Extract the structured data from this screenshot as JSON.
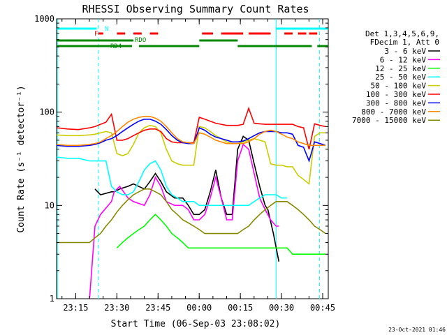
{
  "chart_data": {
    "type": "line",
    "title": "RHESSI Observing Summary Count Rates",
    "xlabel": "Start Time (06-Sep-03 23:08:02)",
    "ylabel": "Count Rate (s⁻¹ detector⁻¹)",
    "yscale": "log",
    "ylim": [
      1,
      1000
    ],
    "xlim_minutes": [
      0,
      99
    ],
    "x_ticks": [
      {
        "label": "23:15",
        "t": 6.97
      },
      {
        "label": "23:30",
        "t": 21.97
      },
      {
        "label": "23:45",
        "t": 36.97
      },
      {
        "label": "00:00",
        "t": 51.97
      },
      {
        "label": "00:15",
        "t": 66.97
      },
      {
        "label": "00:30",
        "t": 81.97
      },
      {
        "label": "00:45",
        "t": 96.97
      }
    ],
    "y_ticks": [
      {
        "label": "1",
        "v": 1
      },
      {
        "label": "10",
        "v": 10
      },
      {
        "label": "100",
        "v": 100
      },
      {
        "label": "1000",
        "v": 1000
      }
    ],
    "legend": {
      "header": [
        "Det 1,3,4,5,6,9,",
        "FDecim 1, Att 0"
      ],
      "position": "right"
    },
    "series": [
      {
        "name": "3 - 6 keV",
        "color": "#000000",
        "t": [
          0,
          8,
          14,
          16,
          20,
          21,
          23,
          26,
          28,
          32,
          34,
          36,
          38,
          40,
          43,
          46,
          48,
          50,
          52,
          54,
          56,
          58,
          60,
          62,
          64,
          66,
          68,
          70,
          72,
          74,
          76,
          77,
          79,
          81,
          82,
          84
        ],
        "values": [
          null,
          null,
          15,
          13,
          14,
          14,
          15,
          16,
          17,
          15,
          18,
          22,
          18,
          14,
          12,
          12,
          10,
          8,
          8,
          9,
          14,
          24,
          12,
          8,
          8,
          40,
          55,
          50,
          28,
          16,
          10,
          9,
          5,
          2.5,
          null,
          null
        ]
      },
      {
        "name": "6 - 12 keV",
        "color": "#ff00ff",
        "t": [
          0,
          11.5,
          12,
          14,
          16,
          20,
          21,
          23,
          26,
          28,
          32,
          34,
          36,
          38,
          40,
          43,
          46,
          48,
          50,
          52,
          54,
          56,
          58,
          60,
          62,
          64,
          66,
          68,
          70,
          72,
          74,
          76,
          78,
          80,
          81,
          82,
          84
        ],
        "values": [
          null,
          null,
          1,
          6,
          8,
          11,
          14,
          16,
          12,
          11,
          10,
          13,
          20,
          16,
          11,
          10,
          10,
          9,
          7,
          7,
          8,
          12,
          20,
          12,
          7,
          7,
          30,
          45,
          40,
          22,
          12,
          9,
          7,
          6,
          6,
          null,
          null
        ]
      },
      {
        "name": "12 - 25 keV",
        "color": "#00ff00",
        "t": [
          0,
          5,
          8,
          10,
          14,
          16,
          18,
          20,
          22,
          24,
          26,
          28,
          30,
          32,
          34,
          36,
          38,
          40,
          42,
          44,
          46,
          48,
          50,
          52,
          54,
          56,
          58,
          60,
          62,
          64,
          66,
          68,
          70,
          72,
          74,
          76,
          78,
          80,
          82,
          84,
          86,
          88,
          90,
          92,
          94,
          96,
          98
        ],
        "values": [
          null,
          null,
          null,
          null,
          null,
          null,
          null,
          null,
          3.5,
          4,
          4.5,
          5,
          5.5,
          6,
          7,
          8,
          7,
          6,
          5,
          4.5,
          4,
          3.5,
          3.5,
          3.5,
          3.5,
          3.5,
          3.5,
          3.5,
          3.5,
          3.5,
          3.5,
          3.5,
          3.5,
          3.5,
          3.5,
          3.5,
          3.5,
          3.5,
          3.5,
          3.5,
          3,
          3,
          3,
          3,
          3,
          3,
          3
        ]
      },
      {
        "name": "25 - 50 keV",
        "color": "#00ffff",
        "t": [
          0,
          4,
          8,
          12,
          14,
          16,
          18,
          20,
          22,
          24,
          26,
          28,
          30,
          32,
          34,
          36,
          38,
          40,
          42,
          44,
          46,
          48,
          50,
          52,
          54,
          56,
          58,
          60,
          62,
          64,
          66,
          68,
          70,
          72,
          74,
          76,
          78,
          80,
          82,
          84,
          86,
          88,
          90,
          92,
          94,
          96,
          98
        ],
        "values": [
          33,
          32,
          32,
          30,
          30,
          30,
          30,
          16,
          14,
          13,
          13,
          14,
          18,
          24,
          28,
          30,
          24,
          16,
          13,
          12,
          11,
          11,
          11,
          10,
          10,
          10,
          10,
          10,
          10,
          10,
          10,
          10,
          10,
          11,
          12,
          13,
          13,
          13,
          12,
          12,
          null,
          null,
          null,
          null,
          null,
          null,
          null
        ]
      },
      {
        "name": "50 - 100 keV",
        "color": "#cccc00",
        "t": [
          0,
          4,
          8,
          12,
          14,
          16,
          18,
          20,
          22,
          24,
          26,
          28,
          30,
          32,
          34,
          36,
          38,
          40,
          42,
          44,
          46,
          48,
          50,
          52,
          54,
          56,
          58,
          60,
          62,
          64,
          66,
          68,
          70,
          72,
          74,
          76,
          78,
          80,
          82,
          84,
          86,
          88,
          90,
          92,
          94,
          96,
          98
        ],
        "values": [
          57,
          56,
          56,
          57,
          58,
          60,
          62,
          60,
          36,
          34,
          36,
          45,
          60,
          68,
          72,
          70,
          60,
          40,
          30,
          28,
          27,
          27,
          27,
          70,
          68,
          62,
          56,
          52,
          48,
          46,
          46,
          48,
          50,
          52,
          50,
          48,
          28,
          27,
          27,
          26,
          26,
          21,
          19,
          17,
          55,
          60,
          60
        ]
      },
      {
        "name": "100 - 300 keV",
        "color": "#ff0000",
        "t": [
          0,
          4,
          8,
          12,
          14,
          16,
          18,
          20,
          22,
          24,
          26,
          28,
          30,
          32,
          34,
          36,
          38,
          40,
          42,
          44,
          46,
          48,
          50,
          52,
          54,
          56,
          58,
          60,
          62,
          64,
          66,
          68,
          70,
          72,
          74,
          76,
          78,
          80,
          82,
          84,
          86,
          88,
          90,
          92,
          94,
          96,
          98
        ],
        "values": [
          68,
          66,
          65,
          68,
          70,
          74,
          78,
          95,
          50,
          50,
          52,
          56,
          60,
          64,
          66,
          66,
          62,
          52,
          48,
          47,
          47,
          47,
          47,
          88,
          84,
          80,
          76,
          74,
          72,
          72,
          72,
          74,
          110,
          76,
          75,
          74,
          74,
          74,
          74,
          74,
          74,
          70,
          68,
          40,
          75,
          72,
          70
        ]
      },
      {
        "name": "300 - 800 keV",
        "color": "#0000ff",
        "t": [
          0,
          4,
          8,
          12,
          14,
          16,
          18,
          20,
          22,
          24,
          26,
          28,
          30,
          32,
          34,
          36,
          38,
          40,
          42,
          44,
          46,
          48,
          50,
          52,
          54,
          56,
          58,
          60,
          62,
          64,
          66,
          68,
          70,
          72,
          74,
          76,
          78,
          80,
          82,
          84,
          86,
          88,
          90,
          92,
          94,
          96,
          98
        ],
        "values": [
          44,
          43,
          43,
          44,
          45,
          47,
          50,
          52,
          56,
          62,
          68,
          74,
          80,
          84,
          84,
          80,
          74,
          65,
          56,
          50,
          47,
          46,
          46,
          68,
          64,
          58,
          54,
          52,
          50,
          48,
          48,
          49,
          52,
          56,
          60,
          62,
          62,
          62,
          60,
          60,
          58,
          44,
          42,
          30,
          48,
          46,
          44
        ]
      },
      {
        "name": "800 - 7000 keV",
        "color": "#ff8800",
        "t": [
          0,
          4,
          8,
          12,
          14,
          16,
          18,
          20,
          22,
          24,
          26,
          28,
          30,
          32,
          34,
          36,
          38,
          40,
          42,
          44,
          46,
          48,
          50,
          52,
          54,
          56,
          58,
          60,
          62,
          64,
          66,
          68,
          70,
          72,
          74,
          76,
          78,
          80,
          82,
          84,
          86,
          88,
          90,
          92,
          94,
          96,
          98
        ],
        "values": [
          45,
          44,
          44,
          45,
          46,
          48,
          52,
          56,
          62,
          70,
          78,
          84,
          88,
          90,
          90,
          86,
          80,
          70,
          60,
          52,
          48,
          47,
          46,
          60,
          58,
          54,
          50,
          48,
          46,
          46,
          46,
          46,
          48,
          52,
          58,
          62,
          64,
          62,
          58,
          54,
          52,
          48,
          46,
          44,
          44,
          44,
          44
        ]
      },
      {
        "name": "7000 - 15000 keV",
        "color": "#888800",
        "t": [
          0,
          4,
          8,
          12,
          14,
          16,
          18,
          20,
          22,
          24,
          26,
          28,
          30,
          32,
          34,
          36,
          38,
          40,
          42,
          44,
          46,
          48,
          50,
          52,
          54,
          56,
          58,
          60,
          62,
          64,
          66,
          68,
          70,
          72,
          74,
          76,
          78,
          80,
          82,
          84,
          86,
          88,
          90,
          92,
          94,
          96,
          98
        ],
        "values": [
          4,
          4,
          4,
          4,
          4.5,
          5,
          6,
          7,
          8.5,
          10,
          11.5,
          13,
          14,
          15,
          15,
          14,
          13,
          11,
          9,
          8,
          7,
          6.5,
          6,
          5.5,
          5,
          5,
          5,
          5,
          5,
          5,
          5,
          5.5,
          6,
          7,
          8,
          9,
          10,
          11,
          11,
          11,
          10,
          9,
          8,
          7,
          6,
          5.5,
          5
        ]
      }
    ],
    "flags": [
      {
        "label": "N",
        "color": "#00ffff",
        "segments": [
          [
            0,
            14.6
          ],
          [
            80,
            99
          ]
        ]
      },
      {
        "label": "F",
        "color": "#ff0000",
        "segments": [
          [
            15.2,
            17
          ],
          [
            22,
            25
          ],
          [
            28,
            31
          ],
          [
            34,
            37
          ],
          [
            53,
            57
          ],
          [
            60,
            68
          ],
          [
            70,
            78
          ],
          [
            83,
            86
          ],
          [
            88,
            91
          ],
          [
            92,
            95
          ]
        ]
      },
      {
        "label": "RDO",
        "color": "#008800",
        "segments": [
          [
            0,
            28
          ],
          [
            52,
            66
          ]
        ]
      },
      {
        "label": "RD4",
        "color": "#008800",
        "segments": [
          [
            0,
            27.5
          ],
          [
            30,
            52
          ],
          [
            66,
            79
          ],
          [
            79,
            93
          ],
          [
            95,
            99
          ]
        ]
      }
    ],
    "saa_lines": {
      "color": "#00ffff",
      "solid": [
        0.3,
        80
      ],
      "dashed": [
        15.2,
        95.8
      ]
    }
  },
  "footer_date": "23-Oct-2021 01:46"
}
